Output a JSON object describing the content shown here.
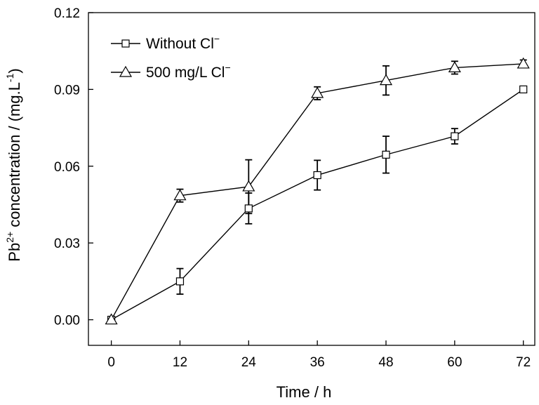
{
  "chart_data": {
    "type": "line",
    "xlabel": "Time / h",
    "ylabel": {
      "prefix": "Pb",
      "superscript": "2+",
      "middle": " concentration / (mg.L",
      "superscript2": "-1",
      "suffix": ")"
    },
    "xlim": [
      -4,
      74
    ],
    "ylim": [
      -0.01,
      0.12
    ],
    "xticks": [
      0,
      12,
      24,
      36,
      48,
      60,
      72
    ],
    "xtick_labels": [
      "0",
      "12",
      "24",
      "36",
      "48",
      "60",
      "72"
    ],
    "yticks": [
      0.0,
      0.03,
      0.06,
      0.09,
      0.12
    ],
    "ytick_labels": [
      "0.00",
      "0.03",
      "0.06",
      "0.09",
      "0.12"
    ],
    "grid": false,
    "legend_position": "top-left",
    "x": [
      0,
      12,
      24,
      36,
      48,
      60,
      72
    ],
    "series": [
      {
        "name": "Without Cl",
        "name_superscript": "−",
        "marker": "square",
        "values": [
          0.0,
          0.015,
          0.0435,
          0.0565,
          0.0645,
          0.0717,
          0.09
        ],
        "errors": [
          0.0,
          0.005,
          0.006,
          0.0058,
          0.0072,
          0.003,
          0.0008
        ]
      },
      {
        "name": "500 mg/L Cl",
        "name_superscript": "−",
        "marker": "triangle",
        "values": [
          0.0,
          0.0485,
          0.052,
          0.0885,
          0.0935,
          0.0985,
          0.1
        ],
        "errors": [
          0.0,
          0.0025,
          0.0105,
          0.0025,
          0.0057,
          0.0025,
          0.0015
        ]
      }
    ]
  }
}
